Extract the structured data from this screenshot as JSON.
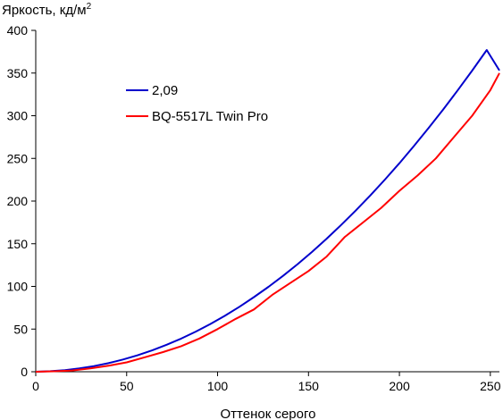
{
  "chart_data": {
    "type": "line",
    "title": "",
    "ylabel": "Яркость, кд/м",
    "ylabel_superscript": "2",
    "xlabel": "Оттенок серого",
    "xlim": [
      0,
      255
    ],
    "ylim": [
      0,
      400
    ],
    "xticks": [
      "0",
      "50",
      "100",
      "150",
      "200",
      "250"
    ],
    "yticks": [
      "0",
      "50",
      "100",
      "150",
      "200",
      "250",
      "300",
      "350",
      "400"
    ],
    "grid": false,
    "legend_position": "top-left",
    "series": [
      {
        "name": "2,09",
        "color": "#0000cc",
        "x": [
          0,
          8,
          16,
          24,
          32,
          40,
          48,
          56,
          64,
          72,
          80,
          88,
          96,
          104,
          112,
          120,
          128,
          136,
          144,
          152,
          160,
          168,
          176,
          184,
          192,
          200,
          208,
          216,
          224,
          232,
          240,
          248,
          255
        ],
        "y": [
          0,
          0.6,
          1.9,
          3.9,
          6.6,
          10.1,
          14.3,
          19.3,
          25,
          31.6,
          38.9,
          47,
          55.9,
          65.6,
          76.1,
          87.4,
          99.5,
          112.4,
          126.1,
          140.6,
          155.9,
          172,
          188.9,
          206.6,
          225.1,
          244.4,
          264.5,
          285.4,
          307.1,
          329.6,
          352.9,
          377,
          353
        ]
      },
      {
        "name": "BQ-5517L Twin Pro",
        "color": "#ff0000",
        "x": [
          0,
          10,
          20,
          30,
          40,
          50,
          60,
          70,
          80,
          90,
          100,
          110,
          120,
          130,
          140,
          150,
          160,
          170,
          180,
          190,
          200,
          210,
          220,
          230,
          240,
          250,
          255
        ],
        "y": [
          0,
          0.5,
          1.5,
          4,
          7,
          11,
          17,
          23,
          30,
          39,
          50,
          62,
          73,
          90,
          104,
          118,
          135,
          158,
          175,
          192,
          212,
          230,
          250,
          275,
          300,
          330,
          350
        ]
      }
    ]
  }
}
